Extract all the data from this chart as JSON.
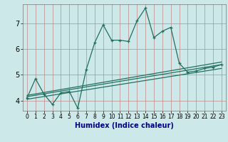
{
  "xlabel": "Humidex (Indice chaleur)",
  "bg_color": "#cce8e8",
  "grid_color": "#c08888",
  "line_color": "#207060",
  "x_min": -0.5,
  "x_max": 23.5,
  "y_min": 3.6,
  "y_max": 7.75,
  "yticks": [
    4,
    5,
    6,
    7
  ],
  "xticks": [
    0,
    1,
    2,
    3,
    4,
    5,
    6,
    7,
    8,
    9,
    10,
    11,
    12,
    13,
    14,
    15,
    16,
    17,
    18,
    19,
    20,
    21,
    22,
    23
  ],
  "main_line_x": [
    0,
    1,
    2,
    3,
    4,
    5,
    6,
    7,
    8,
    9,
    10,
    11,
    12,
    13,
    14,
    15,
    16,
    17,
    18,
    19,
    20,
    21,
    22,
    23
  ],
  "main_line_y": [
    4.1,
    4.85,
    4.25,
    3.85,
    4.3,
    4.35,
    3.7,
    5.2,
    6.25,
    6.95,
    6.35,
    6.35,
    6.3,
    7.1,
    7.6,
    6.45,
    6.7,
    6.85,
    5.45,
    5.1,
    5.15,
    5.25,
    5.3,
    5.4
  ],
  "trend1_x": [
    0,
    23
  ],
  "trend1_y": [
    4.05,
    5.25
  ],
  "trend2_x": [
    0,
    23
  ],
  "trend2_y": [
    4.15,
    5.4
  ],
  "trend3_x": [
    0,
    23
  ],
  "trend3_y": [
    4.2,
    5.5
  ],
  "marker_size": 3.5,
  "xlabel_color": "#000080",
  "xlabel_fontsize": 7,
  "tick_fontsize": 5.5,
  "ytick_fontsize": 7
}
